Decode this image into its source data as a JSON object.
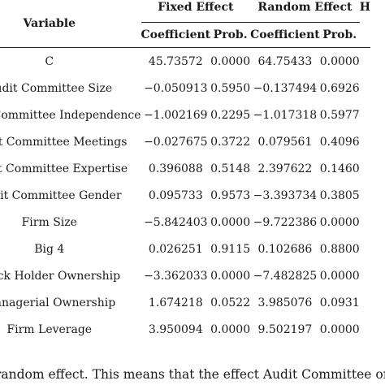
{
  "table": {
    "variable_header": "Variable",
    "groups": [
      {
        "label": "Fixed Effect",
        "coef_label": "Coefficient",
        "prob_label": "Prob."
      },
      {
        "label": "Random Effect",
        "coef_label": "Coefficient",
        "prob_label": "Prob."
      }
    ],
    "extra_header": "H",
    "rows": [
      {
        "variable": "C",
        "fixed_coef": "45.73572",
        "fixed_prob": "0.0000",
        "random_coef": "64.75433",
        "random_prob": "0.0000"
      },
      {
        "variable": "Audit Committee Size",
        "fixed_coef": "−0.050913",
        "fixed_prob": "0.5950",
        "random_coef": "−0.137494",
        "random_prob": "0.6926"
      },
      {
        "variable": "Audit Committee Independence",
        "fixed_coef": "−1.002169",
        "fixed_prob": "0.2295",
        "random_coef": "−1.017318",
        "random_prob": "0.5977"
      },
      {
        "variable": "Audit Committee Meetings",
        "fixed_coef": "−0.027675",
        "fixed_prob": "0.3722",
        "random_coef": "0.079561",
        "random_prob": "0.4096"
      },
      {
        "variable": "Audit Committee Expertise",
        "fixed_coef": "0.396088",
        "fixed_prob": "0.5148",
        "random_coef": "2.397622",
        "random_prob": "0.1460"
      },
      {
        "variable": "Audit Committee Gender",
        "fixed_coef": "0.095733",
        "fixed_prob": "0.9573",
        "random_coef": "−3.393734",
        "random_prob": "0.3805"
      },
      {
        "variable": "Firm Size",
        "fixed_coef": "−5.842403",
        "fixed_prob": "0.0000",
        "random_coef": "−9.722386",
        "random_prob": "0.0000"
      },
      {
        "variable": "Big 4",
        "fixed_coef": "0.026251",
        "fixed_prob": "0.9115",
        "random_coef": "0.102686",
        "random_prob": "0.8800"
      },
      {
        "variable": "Block Holder Ownership",
        "fixed_coef": "−3.362033",
        "fixed_prob": "0.0000",
        "random_coef": "−7.482825",
        "random_prob": "0.0000"
      },
      {
        "variable": "Managerial Ownership",
        "fixed_coef": "1.674218",
        "fixed_prob": "0.0522",
        "random_coef": "3.985076",
        "random_prob": "0.0931"
      },
      {
        "variable": "Firm Leverage",
        "fixed_coef": "3.950094",
        "fixed_prob": "0.0000",
        "random_coef": "9.502197",
        "random_prob": "0.0000"
      }
    ]
  },
  "footer_text": "random effect. This means that the effect Audit Committee on"
}
